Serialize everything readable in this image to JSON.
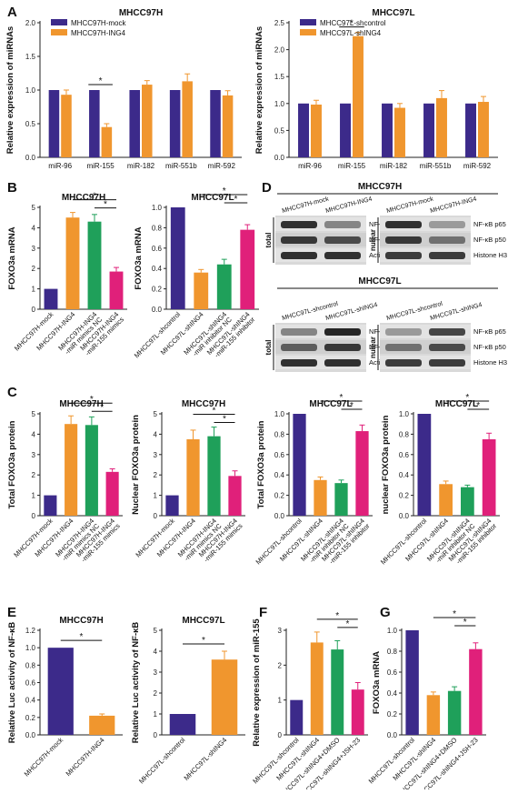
{
  "colors": {
    "purple": "#3c2a8a",
    "orange": "#f0962e",
    "green": "#1fa05a",
    "pink": "#e0207a",
    "gray": "#444444"
  },
  "panel_letters": [
    "A",
    "B",
    "C",
    "D",
    "E",
    "F",
    "G"
  ],
  "chart_data": [
    {
      "id": "A1",
      "type": "bar",
      "title": "MHCC97H",
      "ylabel": "Relative expression of miRNAs",
      "xlabel": "",
      "categories": [
        "miR-96",
        "miR-155",
        "miR-182",
        "miR-551b",
        "miR-592"
      ],
      "series": [
        {
          "name": "MHCC97H-mock",
          "color": "purple",
          "values": [
            1.0,
            1.0,
            1.0,
            1.0,
            1.0
          ],
          "err": [
            0,
            0,
            0,
            0,
            0
          ]
        },
        {
          "name": "MHCC97H-ING4",
          "color": "orange",
          "values": [
            0.93,
            0.45,
            1.08,
            1.13,
            0.92
          ],
          "err": [
            0.07,
            0.05,
            0.06,
            0.11,
            0.07
          ]
        }
      ],
      "ylim": [
        0,
        2.0
      ],
      "yticks": [
        0.0,
        0.5,
        1.0,
        1.5,
        2.0
      ],
      "ytick_labels": [
        "0.0",
        "0.5",
        "1.0",
        "1.5",
        "2.0"
      ],
      "sig": [
        {
          "i": 1,
          "j": 1,
          "label": "*"
        }
      ]
    },
    {
      "id": "A2",
      "type": "bar",
      "title": "MHCC97L",
      "ylabel": "Relative expression of miRNAs",
      "xlabel": "",
      "categories": [
        "miR-96",
        "miR-155",
        "miR-182",
        "miR-551b",
        "miR-592"
      ],
      "series": [
        {
          "name": "MHCC97L-shcontrol",
          "color": "purple",
          "values": [
            1.0,
            1.0,
            1.0,
            1.0,
            1.0
          ],
          "err": [
            0,
            0,
            0,
            0,
            0
          ]
        },
        {
          "name": "MHCC97L-shING4",
          "color": "orange",
          "values": [
            0.98,
            2.25,
            0.92,
            1.1,
            1.03
          ],
          "err": [
            0.08,
            0.07,
            0.08,
            0.14,
            0.1
          ]
        }
      ],
      "ylim": [
        0,
        2.5
      ],
      "yticks": [
        0.0,
        0.5,
        1.0,
        1.5,
        2.0,
        2.5
      ],
      "ytick_labels": [
        "0.0",
        "0.5",
        "1.0",
        "1.5",
        "2.0",
        "2.5"
      ],
      "sig": [
        {
          "i": 1,
          "j": 1,
          "label": "*"
        }
      ]
    },
    {
      "id": "B1",
      "type": "bar",
      "title": "MHCC97H",
      "ylabel": "FOXO3a mRNA",
      "xlabel": "",
      "categories": [
        "MHCC97H-mock",
        "MHCC97H-ING4",
        "MHCC97H-ING4 -miR mimics NC",
        "MHCC97H-ING4 -miR-155 mimics"
      ],
      "values": [
        1.0,
        4.5,
        4.3,
        1.85
      ],
      "err": [
        0,
        0.25,
        0.35,
        0.2
      ],
      "colors": [
        "purple",
        "orange",
        "green",
        "pink"
      ],
      "ylim": [
        0,
        5
      ],
      "yticks": [
        0,
        1,
        2,
        3,
        4,
        5
      ],
      "ytick_labels": [
        "0",
        "1",
        "2",
        "3",
        "4",
        "5"
      ],
      "sig": [
        {
          "i": 1,
          "j": 3,
          "label": "*"
        },
        {
          "i": 2,
          "j": 3,
          "label": "*"
        }
      ]
    },
    {
      "id": "B2",
      "type": "bar",
      "title": "MHCC97L",
      "ylabel": "FOXO3a mRNA",
      "xlabel": "",
      "categories": [
        "MHCC97L-shcontrol",
        "MHCC97L-shING4",
        "MHCC97L-shING4 -miR inhibitor NC",
        "MHCC97L-shING4 -miR-155 inhibitor"
      ],
      "values": [
        1.0,
        0.36,
        0.44,
        0.78
      ],
      "err": [
        0,
        0.03,
        0.05,
        0.05
      ],
      "colors": [
        "purple",
        "orange",
        "green",
        "pink"
      ],
      "ylim": [
        0,
        1.0
      ],
      "yticks": [
        0.0,
        0.2,
        0.4,
        0.6,
        0.8,
        1.0
      ],
      "ytick_labels": [
        "0.0",
        "0.2",
        "0.4",
        "0.6",
        "0.8",
        "1.0"
      ],
      "sig": [
        {
          "i": 1,
          "j": 3,
          "label": "*"
        },
        {
          "i": 2,
          "j": 3,
          "label": "*"
        }
      ]
    },
    {
      "id": "C1",
      "type": "bar",
      "title": "MHCC97H",
      "ylabel": "Total FOXO3a protein",
      "xlabel": "",
      "categories": [
        "MHCC97H-mock",
        "MHCC97H-ING4",
        "MHCC97H-ING4 -miR mimics NC",
        "MHCC97H-ING4 -miR-155 mimics"
      ],
      "values": [
        1.0,
        4.5,
        4.45,
        2.15
      ],
      "err": [
        0,
        0.4,
        0.4,
        0.15
      ],
      "colors": [
        "purple",
        "orange",
        "green",
        "pink"
      ],
      "ylim": [
        0,
        5
      ],
      "yticks": [
        0,
        1,
        2,
        3,
        4,
        5
      ],
      "ytick_labels": [
        "0",
        "1",
        "2",
        "3",
        "4",
        "5"
      ],
      "sig": [
        {
          "i": 1,
          "j": 3,
          "label": "*"
        },
        {
          "i": 2,
          "j": 3,
          "label": "*"
        }
      ]
    },
    {
      "id": "C2",
      "type": "bar",
      "title": "MHCC97H",
      "ylabel": "Nuclear FOXO3a protein",
      "xlabel": "",
      "categories": [
        "MHCC97H-mock",
        "MHCC97H-ING4",
        "MHCC97H-ING4 -miR mimics NC",
        "MHCC97H-ING4 -miR-155 mimics"
      ],
      "values": [
        1.0,
        3.75,
        3.9,
        1.95
      ],
      "err": [
        0,
        0.45,
        0.45,
        0.25
      ],
      "colors": [
        "purple",
        "orange",
        "green",
        "pink"
      ],
      "ylim": [
        0,
        5
      ],
      "yticks": [
        0,
        1,
        2,
        3,
        4,
        5
      ],
      "ytick_labels": [
        "0",
        "1",
        "2",
        "3",
        "4",
        "5"
      ],
      "sig": [
        {
          "i": 1,
          "j": 3,
          "label": "*"
        },
        {
          "i": 2,
          "j": 3,
          "label": "*"
        }
      ]
    },
    {
      "id": "C3",
      "type": "bar",
      "title": "MHCC97L",
      "ylabel": "Total FOXO3a protein",
      "xlabel": "",
      "categories": [
        "MHCC97L-shcontrol",
        "MHCC97L-shING4",
        "MHCC97L-shING4 -miR inhibitor NC",
        "MHCC97L-shING4 -miR-155 inhibitor"
      ],
      "values": [
        1.0,
        0.35,
        0.32,
        0.83
      ],
      "err": [
        0,
        0.03,
        0.03,
        0.06
      ],
      "colors": [
        "purple",
        "orange",
        "green",
        "pink"
      ],
      "ylim": [
        0,
        1.0
      ],
      "yticks": [
        0.0,
        0.2,
        0.4,
        0.6,
        0.8,
        1.0
      ],
      "ytick_labels": [
        "0.0",
        "0.2",
        "0.4",
        "0.6",
        "0.8",
        "1.0"
      ],
      "sig": [
        {
          "i": 1,
          "j": 3,
          "label": "*"
        },
        {
          "i": 2,
          "j": 3,
          "label": "*"
        }
      ]
    },
    {
      "id": "C4",
      "type": "bar",
      "title": "MHCC97L",
      "ylabel": "nuclear FOXO3a protein",
      "xlabel": "",
      "categories": [
        "MHCC97L-shcontrol",
        "MHCC97L-shING4",
        "MHCC97L-shING4 -miR inhibitor NC",
        "MHCC97L-shING4 -miR-155 inhibitor"
      ],
      "values": [
        1.0,
        0.31,
        0.28,
        0.75
      ],
      "err": [
        0,
        0.03,
        0.02,
        0.06
      ],
      "colors": [
        "purple",
        "orange",
        "green",
        "pink"
      ],
      "ylim": [
        0,
        1.0
      ],
      "yticks": [
        0.0,
        0.2,
        0.4,
        0.6,
        0.8,
        1.0
      ],
      "ytick_labels": [
        "0.0",
        "0.2",
        "0.4",
        "0.6",
        "0.8",
        "1.0"
      ],
      "sig": [
        {
          "i": 1,
          "j": 3,
          "label": "*"
        },
        {
          "i": 2,
          "j": 3,
          "label": "*"
        }
      ]
    },
    {
      "id": "E1",
      "type": "bar",
      "title": "MHCC97H",
      "ylabel": "Relative Luc activity of NF-κB",
      "xlabel": "",
      "categories": [
        "MHCC97H-mock",
        "MHCC97H-ING4"
      ],
      "values": [
        1.0,
        0.22
      ],
      "err": [
        0,
        0.02
      ],
      "colors": [
        "purple",
        "orange"
      ],
      "ylim": [
        0,
        1.2
      ],
      "yticks": [
        0.0,
        0.2,
        0.4,
        0.6,
        0.8,
        1.0,
        1.2
      ],
      "ytick_labels": [
        "0.0",
        "0.2",
        "0.4",
        "0.6",
        "0.8",
        "1.0",
        "1.2"
      ],
      "sig": [
        {
          "i": 0,
          "j": 1,
          "label": "*"
        }
      ]
    },
    {
      "id": "E2",
      "type": "bar",
      "title": "MHCC97L",
      "ylabel": "Relative Luc activity of NF-κB",
      "xlabel": "",
      "categories": [
        "MHCC97L-shcontrol",
        "MHCC97L-shING4"
      ],
      "values": [
        1.0,
        3.6
      ],
      "err": [
        0,
        0.4
      ],
      "colors": [
        "purple",
        "orange"
      ],
      "ylim": [
        0,
        5
      ],
      "yticks": [
        0,
        1,
        2,
        3,
        4,
        5
      ],
      "ytick_labels": [
        "0",
        "1",
        "2",
        "3",
        "4",
        "5"
      ],
      "sig": [
        {
          "i": 0,
          "j": 1,
          "label": "*"
        }
      ]
    },
    {
      "id": "F",
      "type": "bar",
      "title": "",
      "ylabel": "Relative expression of miR-155",
      "xlabel": "",
      "categories": [
        "MHCC97L-shcontrol",
        "MHCC97L-shING4",
        "MHCC97L-shING4+DMSO",
        "MHCC97L-shING4+JSH-23"
      ],
      "values": [
        1.0,
        2.65,
        2.45,
        1.3
      ],
      "err": [
        0,
        0.3,
        0.25,
        0.2
      ],
      "colors": [
        "purple",
        "orange",
        "green",
        "pink"
      ],
      "ylim": [
        0,
        3
      ],
      "yticks": [
        0,
        1,
        2,
        3
      ],
      "ytick_labels": [
        "0",
        "1",
        "2",
        "3"
      ],
      "sig": [
        {
          "i": 1,
          "j": 3,
          "label": "*"
        },
        {
          "i": 2,
          "j": 3,
          "label": "*"
        }
      ]
    },
    {
      "id": "G",
      "type": "bar",
      "title": "",
      "ylabel": "FOXO3a mRNA",
      "xlabel": "",
      "categories": [
        "MHCC97L-shcontrol",
        "MHCC97L-shING4",
        "MHCC97L-shING4+DMSO",
        "MHCC97L-shING4+JSH-23"
      ],
      "values": [
        1.0,
        0.38,
        0.42,
        0.82
      ],
      "err": [
        0,
        0.03,
        0.04,
        0.06
      ],
      "colors": [
        "purple",
        "orange",
        "green",
        "pink"
      ],
      "ylim": [
        0,
        1.0
      ],
      "yticks": [
        0.0,
        0.2,
        0.4,
        0.6,
        0.8,
        1.0
      ],
      "ytick_labels": [
        "0.0",
        "0.2",
        "0.4",
        "0.6",
        "0.8",
        "1.0"
      ],
      "sig": [
        {
          "i": 1,
          "j": 3,
          "label": "*"
        },
        {
          "i": 2,
          "j": 3,
          "label": "*"
        }
      ]
    }
  ],
  "blot": {
    "top_title": "MHCC97H",
    "top_total_cols": [
      "MHCC97H-mock",
      "MHCC97H-ING4"
    ],
    "top_nuclear_cols": [
      "MHCC97H-mock",
      "MHCC97H-ING4"
    ],
    "bottom_title": "MHCC97L",
    "bottom_total_cols": [
      "MHCC97L-shcontrol",
      "MHCC97L-shING4"
    ],
    "bottom_nuclear_cols": [
      "MHCC97L-shcontrol",
      "MHCC97L-shING4"
    ],
    "total_label": "total",
    "nuclear_label": "nulear",
    "total_rows": [
      "NF-κB p65",
      "NF-κB p50",
      "Actin"
    ],
    "nuclear_rows": [
      "NF-κB p65",
      "NF-κB p50",
      "Histone H3"
    ]
  }
}
